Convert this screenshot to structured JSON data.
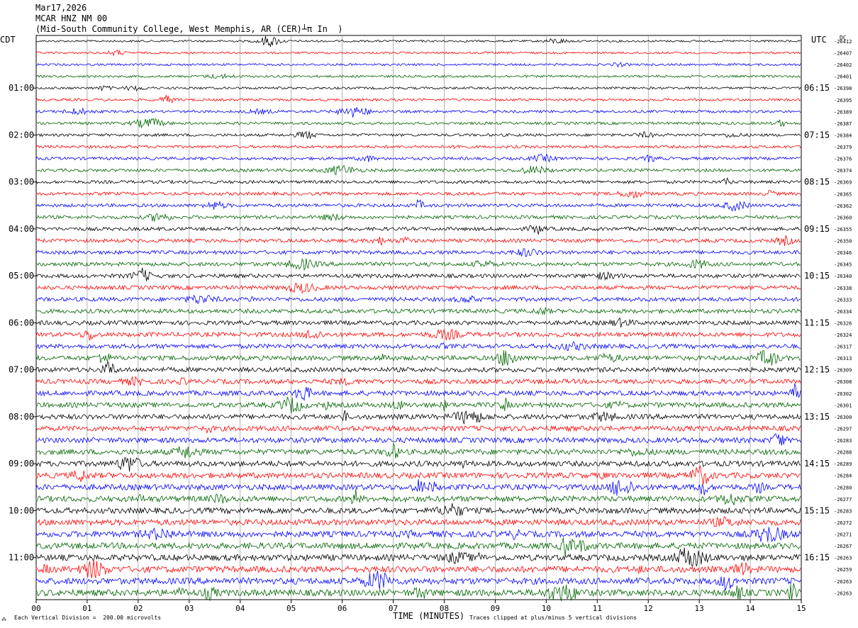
{
  "header": {
    "date": "Mar17,2026",
    "station": "MCAR HNZ NM 00",
    "location": "(Mid-South Community College, West Memphis, AR (CER)",
    "units_marker": "┴π In  )",
    "tz_left": "CDT",
    "tz_right": "UTC",
    "dc_label": "DC"
  },
  "footer": {
    "scale_note": "Each Vertical Division =  200.00 microvolts",
    "clip_note": "Traces clipped at plus/minus 5 vertical divisions",
    "corner_mark": "⁂"
  },
  "colors": {
    "trace_cycle": [
      "#000000",
      "#ff0000",
      "#0000ff",
      "#006400"
    ],
    "grid": "#808080"
  },
  "chart_data": {
    "type": "line",
    "title": "",
    "xlabel": "TIME (MINUTES)",
    "ylabel": "",
    "xlim": [
      0,
      15
    ],
    "x_ticks": [
      "00",
      "01",
      "02",
      "03",
      "04",
      "05",
      "06",
      "07",
      "08",
      "09",
      "10",
      "11",
      "12",
      "13",
      "14",
      "15"
    ],
    "grid": true,
    "left_hour_labels": [
      "01:00",
      "02:00",
      "03:00",
      "04:00",
      "05:00",
      "06:00",
      "07:00",
      "08:00",
      "09:00",
      "10:00",
      "11:00"
    ],
    "right_hour_labels": [
      "06:15",
      "07:15",
      "08:15",
      "09:15",
      "10:15",
      "11:15",
      "12:15",
      "13:15",
      "14:15",
      "15:15",
      "16:15"
    ],
    "trace_count": 48,
    "trace_dc_values": [
      -26412,
      -26407,
      -26402,
      -26401,
      -26398,
      -26395,
      -26389,
      -26387,
      -26384,
      -26379,
      -26376,
      -26374,
      -26369,
      -26365,
      -26362,
      -26360,
      -26355,
      -26350,
      -26346,
      -26345,
      -26340,
      -26338,
      -26333,
      -26334,
      -26326,
      -26324,
      -26317,
      -26313,
      -26309,
      -26308,
      -26302,
      -26301,
      -26300,
      -26297,
      -26283,
      -26288,
      -26289,
      -26284,
      -26280,
      -26277,
      -26283,
      -26272,
      -26271,
      -26267,
      -26263,
      -26259,
      -26263,
      -26263
    ]
  }
}
